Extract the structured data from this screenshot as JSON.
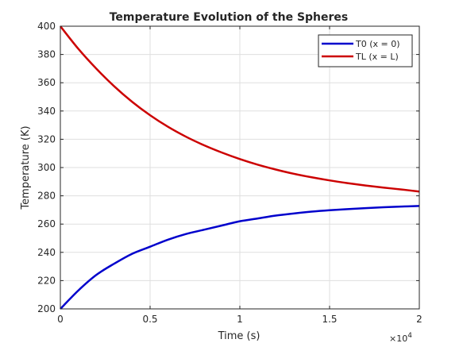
{
  "chart_data": {
    "type": "line",
    "title": "Temperature Evolution of the Spheres",
    "xlabel": "Time (s)",
    "ylabel": "Temperature (K)",
    "x_multiplier_label": "×10",
    "x_multiplier_exponent": "4",
    "xlim": [
      0,
      20000
    ],
    "ylim": [
      200,
      400
    ],
    "xticks": [
      0,
      5000,
      10000,
      15000,
      20000
    ],
    "xtick_labels": [
      "0",
      "0.5",
      "1",
      "1.5",
      "2"
    ],
    "yticks": [
      200,
      220,
      240,
      260,
      280,
      300,
      320,
      340,
      360,
      380,
      400
    ],
    "ytick_labels": [
      "200",
      "220",
      "240",
      "260",
      "280",
      "300",
      "320",
      "340",
      "360",
      "380",
      "400"
    ],
    "grid": true,
    "legend_position": "top-right",
    "series": [
      {
        "name": "T0 (x = 0)",
        "color": "#0000cc",
        "x": [
          0,
          1000,
          2000,
          3000,
          4000,
          5000,
          6000,
          7000,
          8000,
          9000,
          10000,
          11000,
          12000,
          13000,
          14000,
          15000,
          16000,
          17000,
          18000,
          19000,
          20000
        ],
        "y": [
          200,
          213,
          224,
          232,
          239,
          244,
          249,
          253,
          256,
          259,
          262,
          264,
          266,
          267.5,
          268.8,
          269.8,
          270.6,
          271.3,
          271.9,
          272.4,
          272.8
        ]
      },
      {
        "name": "TL (x = L)",
        "color": "#cc0000",
        "x": [
          0,
          1000,
          2000,
          3000,
          4000,
          5000,
          6000,
          7000,
          8000,
          9000,
          10000,
          11000,
          12000,
          13000,
          14000,
          15000,
          16000,
          17000,
          18000,
          19000,
          20000
        ],
        "y": [
          400,
          384,
          370,
          357.5,
          346.5,
          337,
          328.8,
          321.8,
          315.8,
          310.6,
          306,
          302,
          298.6,
          295.6,
          293.1,
          290.9,
          289,
          287.3,
          285.8,
          284.5,
          283
        ]
      }
    ]
  }
}
